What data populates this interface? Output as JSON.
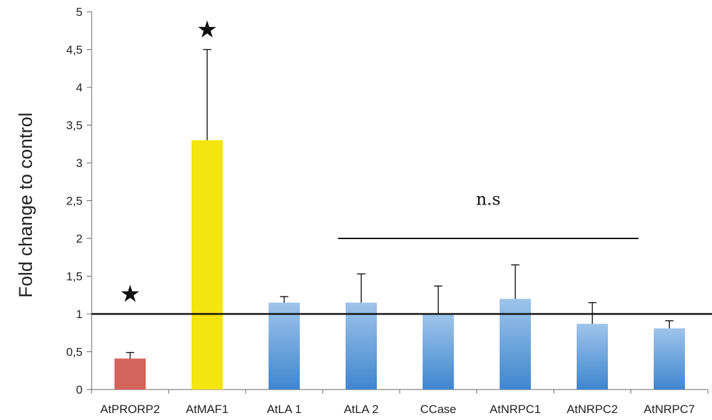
{
  "chart_data": {
    "type": "bar",
    "title": "",
    "xlabel": "",
    "ylabel": "Fold change to control",
    "ylim": [
      0,
      5
    ],
    "yticks": [
      "0",
      "0,5",
      "1",
      "1,5",
      "2",
      "2,5",
      "3",
      "3,5",
      "4",
      "4,5",
      "5"
    ],
    "categories": [
      "AtPRORP2",
      "AtMAF1",
      "AtLA 1",
      "AtLA 2",
      "CCase",
      "AtNRPC1",
      "AtNRPC2",
      "AtNRPC7"
    ],
    "values": [
      0.41,
      3.3,
      1.15,
      1.15,
      0.99,
      1.2,
      0.87,
      0.81
    ],
    "errors": [
      0.08,
      1.2,
      0.08,
      0.38,
      0.38,
      0.45,
      0.28,
      0.1
    ],
    "colors": [
      "#d4645c",
      "#f4e410",
      "#5b9bd5",
      "#5b9bd5",
      "#5b9bd5",
      "#5b9bd5",
      "#5b9bd5",
      "#5b9bd5"
    ],
    "reference_line": 1,
    "grid": false,
    "annotations": {
      "stars": [
        {
          "category": "AtPRORP2",
          "text": "★"
        },
        {
          "category": "AtMAF1",
          "text": "★"
        }
      ],
      "ns_bracket": {
        "from": "AtLA 2",
        "to": "AtNRPC2",
        "y": 2.0,
        "text": "n.s"
      }
    }
  }
}
